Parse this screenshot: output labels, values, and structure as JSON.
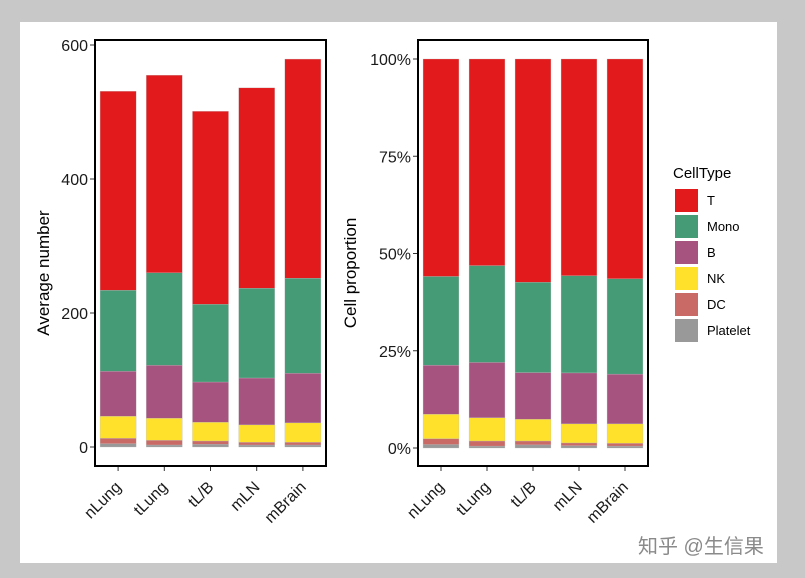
{
  "chart_data": [
    {
      "type": "bar",
      "stacked": true,
      "title": "",
      "xlabel": "",
      "ylabel": "Average number",
      "ylim": [
        0,
        600
      ],
      "yticks": [
        "0",
        "200",
        "400",
        "600"
      ],
      "ytick_values": [
        0,
        200,
        400,
        600
      ],
      "categories": [
        "nLung",
        "tLung",
        "tL/B",
        "mLN",
        "mBrain"
      ],
      "series": [
        {
          "name": "Platelet",
          "values": [
            5,
            3,
            4,
            3,
            3
          ]
        },
        {
          "name": "DC",
          "values": [
            8,
            7,
            5,
            4,
            4
          ]
        },
        {
          "name": "NK",
          "values": [
            33,
            33,
            28,
            26,
            29
          ]
        },
        {
          "name": "B",
          "values": [
            67,
            79,
            60,
            70,
            74
          ]
        },
        {
          "name": "Mono",
          "values": [
            121,
            138,
            116,
            134,
            142
          ]
        },
        {
          "name": "T",
          "values": [
            297,
            295,
            288,
            299,
            327
          ]
        }
      ],
      "grid": false
    },
    {
      "type": "bar",
      "stacked": true,
      "title": "",
      "xlabel": "",
      "ylabel": "Cell proportion",
      "ylim": [
        0,
        100
      ],
      "yticks": [
        "0%",
        "25%",
        "50%",
        "75%",
        "100%"
      ],
      "ytick_values": [
        0,
        25,
        50,
        75,
        100
      ],
      "categories": [
        "nLung",
        "tLung",
        "tL/B",
        "mLN",
        "mBrain"
      ],
      "series": [
        {
          "name": "Platelet",
          "values": [
            0.9,
            0.5,
            0.8,
            0.6,
            0.5
          ]
        },
        {
          "name": "DC",
          "values": [
            1.5,
            1.3,
            1.0,
            0.7,
            0.7
          ]
        },
        {
          "name": "NK",
          "values": [
            6.3,
            6.0,
            5.6,
            4.9,
            5.0
          ]
        },
        {
          "name": "B",
          "values": [
            12.6,
            14.2,
            12.0,
            13.1,
            12.8
          ]
        },
        {
          "name": "Mono",
          "values": [
            22.8,
            24.9,
            23.2,
            25.0,
            24.5
          ]
        },
        {
          "name": "T",
          "values": [
            55.9,
            53.1,
            57.4,
            55.7,
            56.5
          ]
        }
      ],
      "grid": false
    }
  ],
  "legend": {
    "title": "CellType",
    "placement": "right",
    "items": [
      {
        "label": "T",
        "color": "#e31a1c"
      },
      {
        "label": "Mono",
        "color": "#469b77"
      },
      {
        "label": "B",
        "color": "#a6547f"
      },
      {
        "label": "NK",
        "color": "#ffe02a"
      },
      {
        "label": "DC",
        "color": "#c96a66"
      },
      {
        "label": "Platelet",
        "color": "#999999"
      }
    ]
  },
  "watermark": "知乎 @生信果"
}
